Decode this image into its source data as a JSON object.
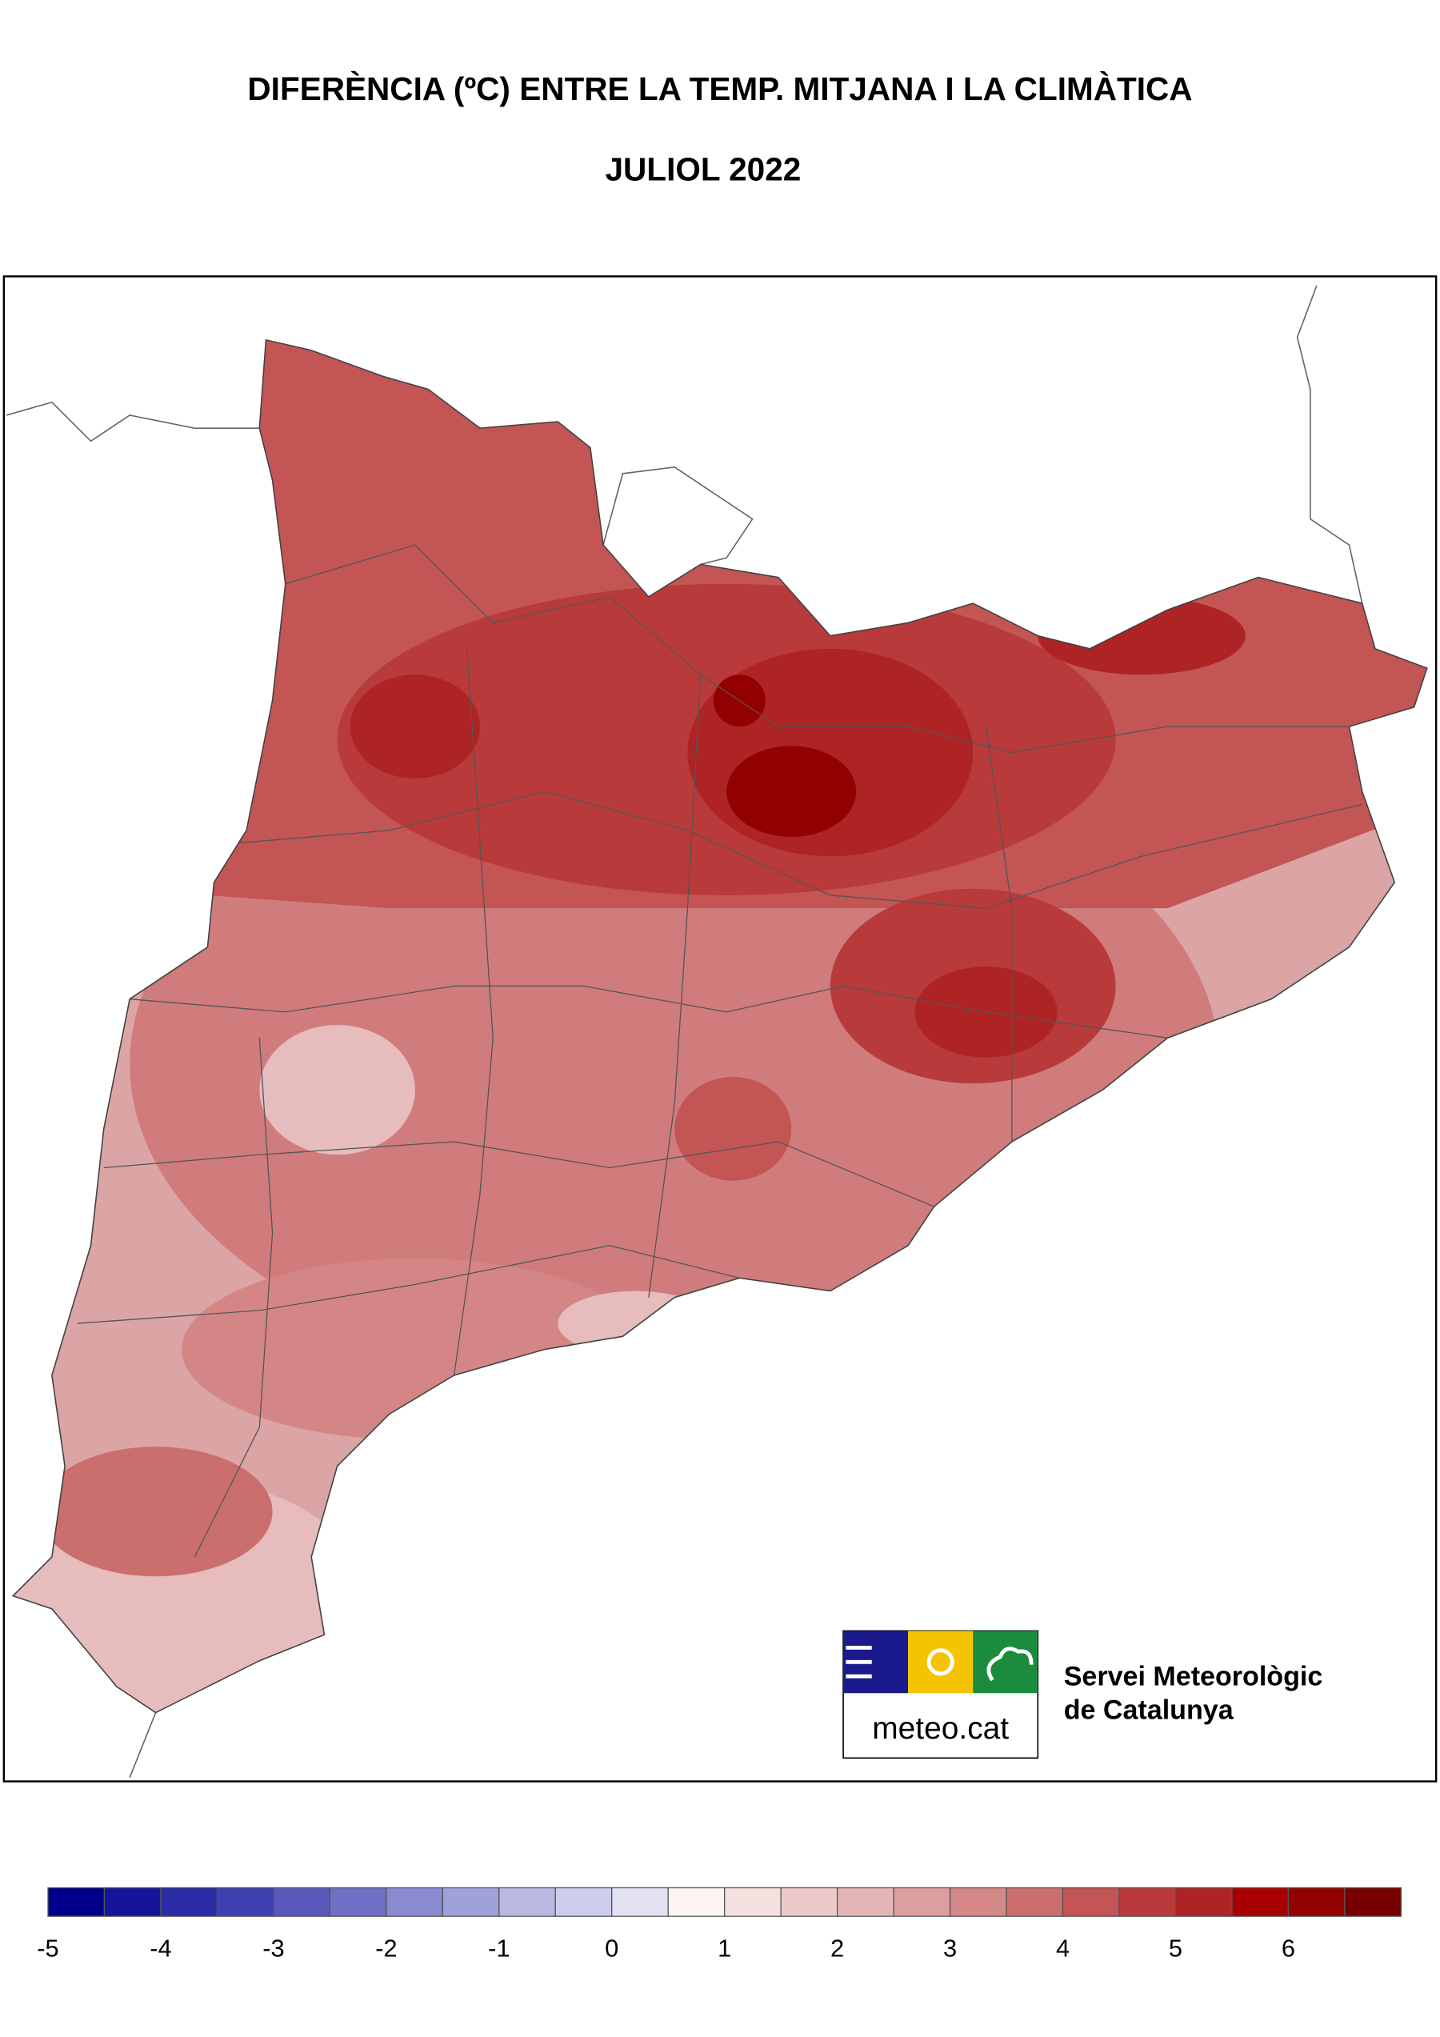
{
  "header": {
    "title": "DIFERÈNCIA (ºC) ENTRE LA TEMP. MITJANA I LA CLIMÀTICA",
    "subtitle": "JULIOL 2022"
  },
  "logo": {
    "site": "meteo.cat",
    "name_line1": "Servei Meteorològic",
    "name_line2": "de Catalunya"
  },
  "legend": {
    "lim": [
      -5,
      7
    ],
    "ticks": [
      -5,
      -4,
      -3,
      -2,
      -1,
      0,
      1,
      2,
      3,
      4,
      5,
      6
    ],
    "colors": [
      "#00008c",
      "#15159a",
      "#2b2ba6",
      "#4040b0",
      "#5858bb",
      "#7070c6",
      "#8a8ad0",
      "#a0a0da",
      "#b8b8e3",
      "#cdcdec",
      "#e2e2f3",
      "#fdf3f3",
      "#f5e0e0",
      "#edcaca",
      "#e5b5b5",
      "#dc9f9f",
      "#d48888",
      "#cb6e6e",
      "#c35555",
      "#b93a3a",
      "#ae2323",
      "#a80000",
      "#920000",
      "#780000"
    ]
  }
}
